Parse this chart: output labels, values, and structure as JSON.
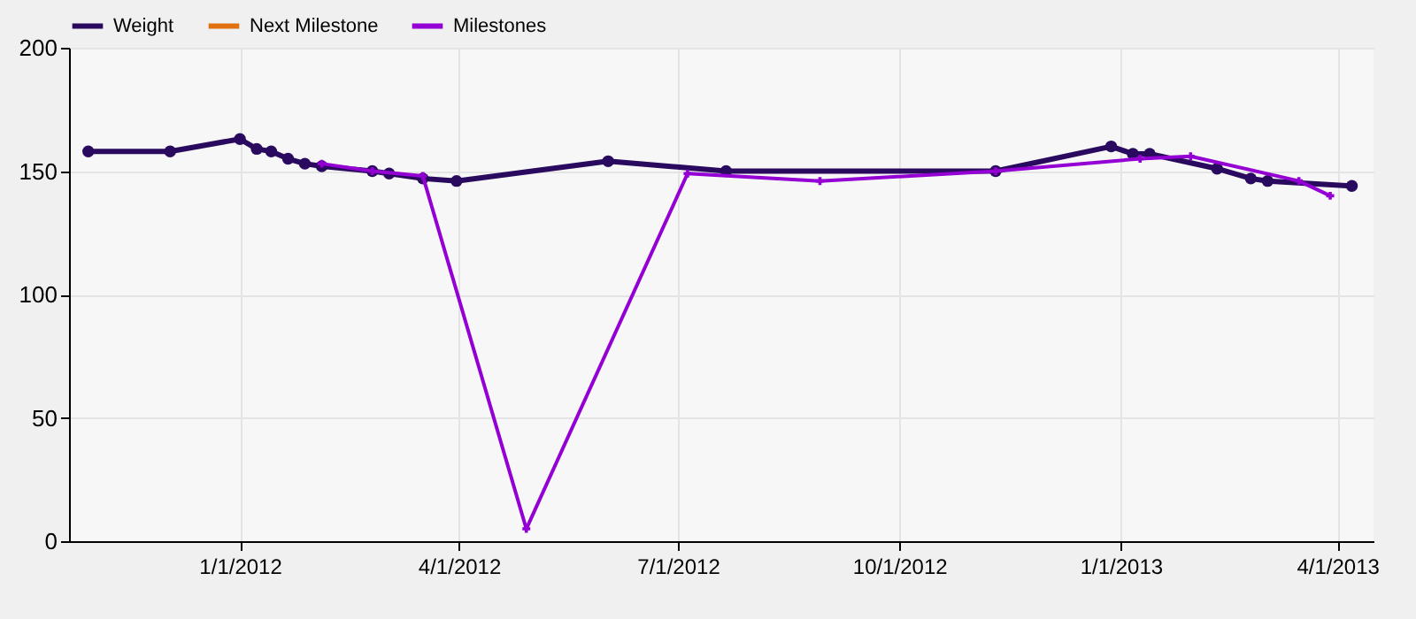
{
  "chart_data": {
    "type": "line",
    "xlim": [
      "2011-10-22",
      "2013-04-16"
    ],
    "xticks": [
      {
        "value": "2012-01-01",
        "label": "1/1/2012"
      },
      {
        "value": "2012-04-01",
        "label": "4/1/2012"
      },
      {
        "value": "2012-07-01",
        "label": "7/1/2012"
      },
      {
        "value": "2012-10-01",
        "label": "10/1/2012"
      },
      {
        "value": "2013-01-01",
        "label": "1/1/2013"
      },
      {
        "value": "2013-04-01",
        "label": "4/1/2013"
      }
    ],
    "ylim": [
      0,
      200
    ],
    "yticks": [
      0,
      50,
      100,
      150,
      200
    ],
    "grid": true,
    "legend": "top left",
    "series": [
      {
        "name": "Weight",
        "color": "#2a0a5e",
        "marker": "circle",
        "x": [
          "2011-10-30",
          "2011-12-03",
          "2012-01-01",
          "2012-01-08",
          "2012-01-14",
          "2012-01-21",
          "2012-01-28",
          "2012-02-04",
          "2012-02-25",
          "2012-03-03",
          "2012-03-17",
          "2012-03-31",
          "2012-06-02",
          "2012-07-21",
          "2012-11-10",
          "2012-12-28",
          "2013-01-06",
          "2013-01-13",
          "2013-02-10",
          "2013-02-24",
          "2013-03-03",
          "2013-04-07"
        ],
        "values": [
          158,
          158,
          163,
          159,
          158,
          155,
          153,
          152,
          150,
          149,
          147,
          146,
          154,
          150,
          150,
          160,
          157,
          157,
          151,
          147,
          146,
          144
        ]
      },
      {
        "name": "Next Milestone",
        "color": "#e07010",
        "marker": "none"
      },
      {
        "name": "Milestones",
        "color": "#9400d3",
        "marker": "cross",
        "x": [
          "2012-02-04",
          "2012-02-25",
          "2012-03-17",
          "2012-04-29",
          "2012-07-05",
          "2012-08-29",
          "2012-11-10",
          "2013-01-09",
          "2013-01-30",
          "2013-03-16",
          "2013-03-29"
        ],
        "values": [
          153,
          150,
          148,
          5,
          149,
          146,
          150,
          155,
          156,
          146,
          140
        ]
      }
    ]
  }
}
